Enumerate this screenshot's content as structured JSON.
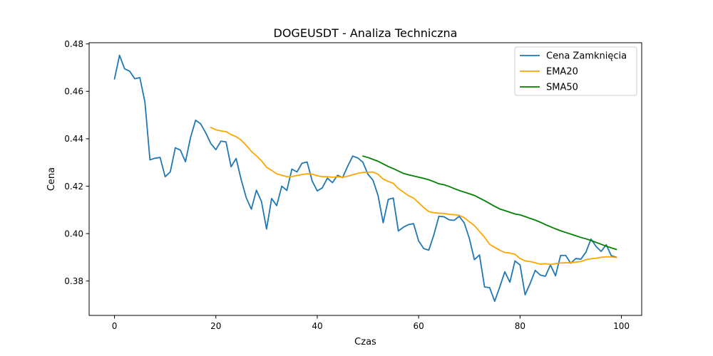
{
  "chart_data": {
    "type": "line",
    "title": "DOGEUSDT - Analiza Techniczna",
    "xlabel": "Czas",
    "ylabel": "Cena",
    "xlim": [
      -5,
      104
    ],
    "ylim": [
      0.3655,
      0.4805
    ],
    "x_ticks": [
      0,
      20,
      40,
      60,
      80,
      100
    ],
    "x_tick_labels": [
      "0",
      "20",
      "40",
      "60",
      "80",
      "100"
    ],
    "y_ticks": [
      0.38,
      0.4,
      0.42,
      0.44,
      0.46,
      0.48
    ],
    "y_tick_labels": [
      "0.38",
      "0.40",
      "0.42",
      "0.44",
      "0.46",
      "0.48"
    ],
    "grid": false,
    "legend_position": "top-right",
    "series": [
      {
        "name": "Cena Zamknięcia",
        "color": "#1f77b4",
        "x_start": 0,
        "values": [
          0.4652,
          0.4752,
          0.4695,
          0.4685,
          0.4653,
          0.4658,
          0.4556,
          0.4311,
          0.4318,
          0.4321,
          0.424,
          0.426,
          0.4362,
          0.4352,
          0.4303,
          0.4405,
          0.4478,
          0.4463,
          0.4425,
          0.438,
          0.4354,
          0.439,
          0.4387,
          0.4282,
          0.4317,
          0.4227,
          0.4151,
          0.4103,
          0.4183,
          0.4135,
          0.4019,
          0.4148,
          0.4118,
          0.42,
          0.4182,
          0.4272,
          0.426,
          0.4297,
          0.4302,
          0.4222,
          0.418,
          0.4193,
          0.4234,
          0.4215,
          0.4246,
          0.4236,
          0.4284,
          0.4327,
          0.4319,
          0.4301,
          0.425,
          0.4225,
          0.416,
          0.4046,
          0.4144,
          0.415,
          0.4011,
          0.4027,
          0.4038,
          0.4042,
          0.3969,
          0.3937,
          0.393,
          0.3995,
          0.4073,
          0.4071,
          0.4058,
          0.4056,
          0.4073,
          0.4045,
          0.398,
          0.389,
          0.391,
          0.3775,
          0.3772,
          0.3715,
          0.3775,
          0.3839,
          0.3795,
          0.3885,
          0.3868,
          0.3742,
          0.379,
          0.3845,
          0.3825,
          0.382,
          0.3868,
          0.3822,
          0.3908,
          0.3908,
          0.3875,
          0.3895,
          0.3892,
          0.3922,
          0.3977,
          0.3946,
          0.3925,
          0.3953,
          0.3907,
          0.39
        ]
      },
      {
        "name": "EMA20",
        "color": "#ffa500",
        "x_start": 19,
        "values": [
          0.4448,
          0.4438,
          0.4433,
          0.443,
          0.4418,
          0.4409,
          0.4394,
          0.4372,
          0.4347,
          0.4328,
          0.4307,
          0.428,
          0.4267,
          0.4252,
          0.4246,
          0.424,
          0.4241,
          0.4245,
          0.4249,
          0.4252,
          0.4251,
          0.4244,
          0.424,
          0.424,
          0.4238,
          0.424,
          0.4238,
          0.4242,
          0.4248,
          0.4254,
          0.4258,
          0.4259,
          0.426,
          0.425,
          0.423,
          0.422,
          0.4212,
          0.419,
          0.4175,
          0.416,
          0.415,
          0.413,
          0.411,
          0.4093,
          0.4088,
          0.4086,
          0.4085,
          0.4081,
          0.408,
          0.4077,
          0.4067,
          0.405,
          0.4034,
          0.4009,
          0.3985,
          0.3955,
          0.3942,
          0.393,
          0.392,
          0.3918,
          0.3913,
          0.3895,
          0.3885,
          0.3882,
          0.3877,
          0.3871,
          0.3873,
          0.387,
          0.3873,
          0.3876,
          0.3877,
          0.3877,
          0.388,
          0.3882,
          0.389,
          0.3894,
          0.3896,
          0.39,
          0.3902,
          0.3902,
          0.3899
        ]
      },
      {
        "name": "SMA50",
        "color": "#008000",
        "x_start": 49,
        "values": [
          0.4327,
          0.4321,
          0.4313,
          0.4305,
          0.4294,
          0.4283,
          0.4274,
          0.4264,
          0.4254,
          0.4248,
          0.4243,
          0.4238,
          0.4233,
          0.4227,
          0.4219,
          0.421,
          0.4206,
          0.4199,
          0.419,
          0.4182,
          0.4175,
          0.4168,
          0.4161,
          0.415,
          0.4139,
          0.4127,
          0.4115,
          0.4104,
          0.4097,
          0.409,
          0.4083,
          0.4079,
          0.4072,
          0.4064,
          0.4057,
          0.4048,
          0.4038,
          0.4029,
          0.402,
          0.4012,
          0.4005,
          0.3998,
          0.3991,
          0.3984,
          0.3978,
          0.3971,
          0.3963,
          0.3955,
          0.3947,
          0.394,
          0.3933
        ]
      }
    ]
  }
}
